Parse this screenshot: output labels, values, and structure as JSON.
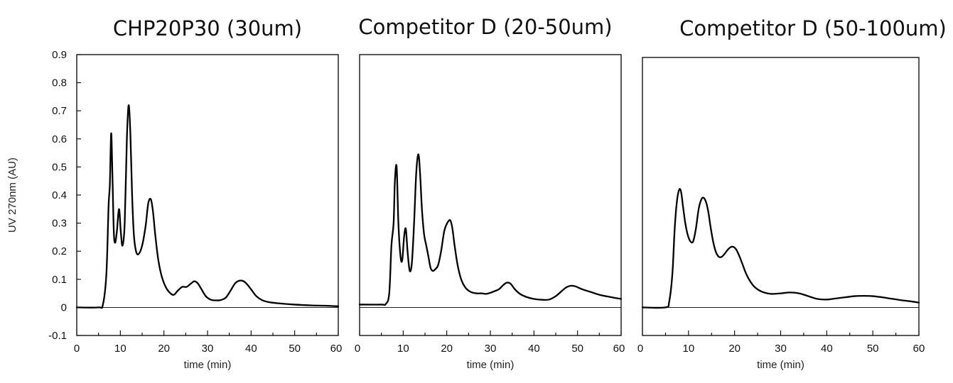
{
  "chart_data": [
    {
      "type": "line",
      "title": "CHP20P30 (30um)",
      "xlabel": "time (min)",
      "ylabel": "UV 270nm (AU)",
      "xlim": [
        0,
        60
      ],
      "ylim": [
        -0.1,
        0.9
      ],
      "xticks": [
        "0",
        "10",
        "20",
        "30",
        "40",
        "50",
        "60"
      ],
      "yticks": [
        "-0.1",
        "0",
        "0.1",
        "0.2",
        "0.3",
        "0.4",
        "0.5",
        "0.6",
        "0.7",
        "0.8",
        "0.9"
      ],
      "grid": false,
      "series": [
        {
          "x": [
            0,
            5,
            6,
            6.8,
            7.3,
            7.6,
            7.9,
            8.2,
            8.5,
            8.8,
            9.2,
            9.7,
            10.1,
            10.5,
            11.0,
            11.5,
            11.9,
            12.3,
            12.7,
            13.1,
            13.6,
            14.2,
            15.0,
            15.8,
            16.4,
            17.0,
            17.5,
            18.0,
            18.7,
            19.5,
            20.5,
            21.5,
            22.3,
            23.2,
            24.2,
            25.2,
            26.2,
            27.0,
            27.8,
            28.6,
            29.6,
            30.8,
            32.0,
            33.0,
            34.2,
            35.3,
            36.3,
            37.3,
            38.3,
            39.2,
            40.2,
            41.2,
            42.5,
            44.0,
            46.0,
            50.0,
            54.0,
            57.0,
            60.0
          ],
          "y": [
            0.0,
            0.0,
            0.01,
            0.12,
            0.36,
            0.44,
            0.62,
            0.46,
            0.27,
            0.23,
            0.27,
            0.35,
            0.27,
            0.22,
            0.3,
            0.6,
            0.72,
            0.62,
            0.4,
            0.26,
            0.2,
            0.19,
            0.22,
            0.29,
            0.37,
            0.385,
            0.34,
            0.26,
            0.17,
            0.11,
            0.07,
            0.05,
            0.045,
            0.06,
            0.073,
            0.073,
            0.085,
            0.093,
            0.085,
            0.065,
            0.04,
            0.027,
            0.025,
            0.026,
            0.035,
            0.06,
            0.085,
            0.095,
            0.093,
            0.08,
            0.06,
            0.04,
            0.026,
            0.019,
            0.015,
            0.01,
            0.007,
            0.006,
            0.004
          ]
        }
      ]
    },
    {
      "type": "line",
      "title": "Competitor D (20-50um)",
      "xlabel": "time (min)",
      "ylabel": "",
      "xlim": [
        0,
        60
      ],
      "ylim": [
        -0.1,
        0.9
      ],
      "xticks": [
        "0",
        "10",
        "20",
        "30",
        "40",
        "50",
        "60"
      ],
      "yticks": [],
      "grid": false,
      "series": [
        {
          "x": [
            0,
            5,
            6,
            6.8,
            7.3,
            7.8,
            8.1,
            8.5,
            8.9,
            9.4,
            9.8,
            10.2,
            10.6,
            11.0,
            11.5,
            12.0,
            12.5,
            13.0,
            13.5,
            13.9,
            14.3,
            14.8,
            15.3,
            15.8,
            16.3,
            16.8,
            17.3,
            18.0,
            18.7,
            19.4,
            20.1,
            20.8,
            21.3,
            21.8,
            22.5,
            23.3,
            24.3,
            25.5,
            26.8,
            28.0,
            29.0,
            30.0,
            31.0,
            32.0,
            33.0,
            33.8,
            34.6,
            35.6,
            36.8,
            38.3,
            40.0,
            42.0,
            43.5,
            45.0,
            46.5,
            47.5,
            48.5,
            49.5,
            51.0,
            53.0,
            55.0,
            57.5,
            60.0
          ],
          "y": [
            0.01,
            0.01,
            0.012,
            0.05,
            0.22,
            0.3,
            0.45,
            0.5,
            0.3,
            0.18,
            0.17,
            0.25,
            0.28,
            0.2,
            0.13,
            0.16,
            0.3,
            0.48,
            0.545,
            0.47,
            0.35,
            0.26,
            0.22,
            0.18,
            0.14,
            0.13,
            0.135,
            0.15,
            0.2,
            0.27,
            0.3,
            0.31,
            0.28,
            0.22,
            0.15,
            0.1,
            0.07,
            0.055,
            0.05,
            0.05,
            0.048,
            0.052,
            0.058,
            0.065,
            0.08,
            0.088,
            0.085,
            0.065,
            0.048,
            0.037,
            0.03,
            0.027,
            0.028,
            0.04,
            0.06,
            0.072,
            0.077,
            0.075,
            0.065,
            0.055,
            0.045,
            0.037,
            0.03
          ]
        }
      ]
    },
    {
      "type": "line",
      "title": "Competitor D (50-100um)",
      "xlabel": "time (min)",
      "ylabel": "",
      "xlim": [
        0,
        60
      ],
      "ylim": [
        -0.1,
        0.9
      ],
      "xticks": [
        "0",
        "10",
        "20",
        "30",
        "40",
        "50",
        "60"
      ],
      "yticks": [],
      "grid": false,
      "series": [
        {
          "x": [
            0,
            5,
            5.8,
            6.5,
            7.0,
            7.5,
            8.0,
            8.4,
            8.8,
            9.3,
            9.8,
            10.4,
            11.0,
            11.6,
            12.2,
            12.8,
            13.3,
            13.8,
            14.3,
            14.8,
            15.4,
            16.0,
            16.6,
            17.2,
            17.8,
            18.5,
            19.2,
            19.8,
            20.4,
            21.1,
            21.8,
            22.5,
            23.3,
            24.2,
            25.2,
            26.4,
            28.0,
            30.0,
            32.0,
            34.0,
            36.0,
            38.0,
            40.0,
            42.0,
            44.0,
            46.0,
            48.0,
            50.0,
            52.0,
            54.0,
            56.0,
            58.0,
            60.0
          ],
          "y": [
            0.0,
            0.0,
            0.02,
            0.12,
            0.28,
            0.38,
            0.42,
            0.41,
            0.36,
            0.3,
            0.26,
            0.235,
            0.235,
            0.28,
            0.35,
            0.385,
            0.39,
            0.375,
            0.34,
            0.285,
            0.23,
            0.195,
            0.18,
            0.18,
            0.19,
            0.205,
            0.215,
            0.215,
            0.205,
            0.18,
            0.15,
            0.12,
            0.095,
            0.075,
            0.062,
            0.053,
            0.048,
            0.05,
            0.053,
            0.05,
            0.04,
            0.03,
            0.028,
            0.032,
            0.036,
            0.04,
            0.041,
            0.04,
            0.036,
            0.031,
            0.026,
            0.022,
            0.017
          ]
        }
      ]
    }
  ]
}
